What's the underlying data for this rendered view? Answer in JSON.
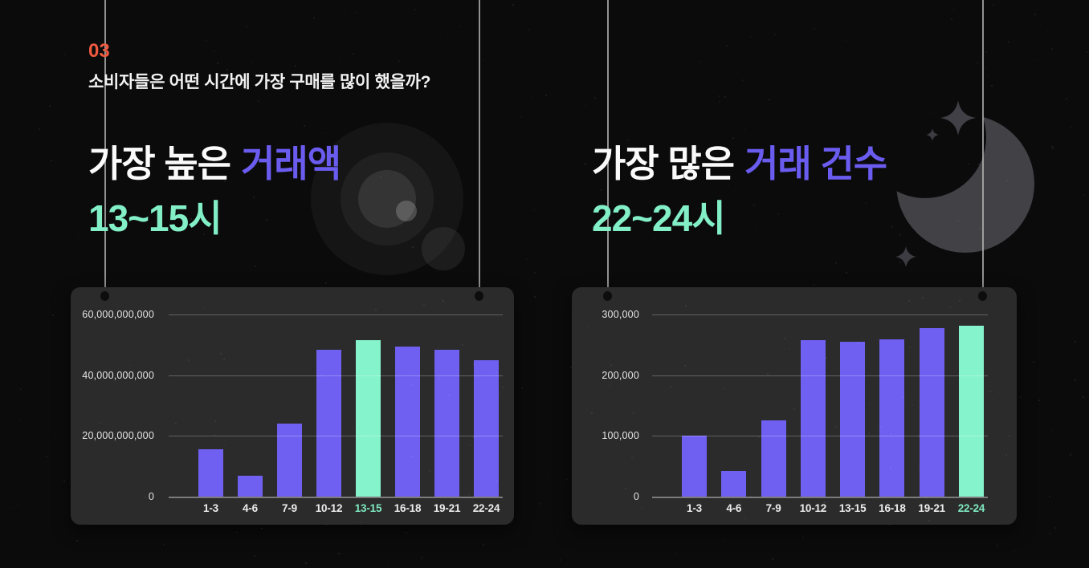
{
  "header": {
    "section_number": "03",
    "question": "소비자들은 어떤 시간에 가장 구매를 많이 했을까?"
  },
  "highlights": {
    "left": {
      "lead": "가장 높은",
      "accent": "거래액",
      "value": "13~15시"
    },
    "right": {
      "lead": "가장 많은",
      "accent": "거래 건수",
      "value": "22~24시"
    }
  },
  "colors": {
    "background": "#0B0B0C",
    "panel": "#2B2B2B",
    "accent_orange": "#F05A3F",
    "accent_purple": "#6B5CF0",
    "accent_mint": "#82EFC7",
    "bar_purple": "#6F60F2",
    "bar_mint": "#85F3CB",
    "gridline": "rgba(255,255,255,0.26)"
  },
  "chart_data": [
    {
      "type": "bar",
      "categories": [
        "1-3",
        "4-6",
        "7-9",
        "10-12",
        "13-15",
        "16-18",
        "19-21",
        "22-24"
      ],
      "values": [
        15500000000,
        7000000000,
        24000000000,
        48500000000,
        51500000000,
        49500000000,
        48500000000,
        45000000000
      ],
      "ylim": [
        0,
        60000000000
      ],
      "yticks": [
        60000000000,
        40000000000,
        20000000000,
        0
      ],
      "highlight_category": "13-15",
      "bar_color": "#6F60F2",
      "highlight_color": "#85F3CB",
      "highlight_label_color": "#7FE9C3",
      "grid": true,
      "legend": "none"
    },
    {
      "type": "bar",
      "categories": [
        "1-3",
        "4-6",
        "7-9",
        "10-12",
        "13-15",
        "16-18",
        "19-21",
        "22-24"
      ],
      "values": [
        101000,
        42000,
        126000,
        258000,
        255000,
        259000,
        278000,
        282000
      ],
      "ylim": [
        0,
        300000
      ],
      "yticks": [
        300000,
        200000,
        100000,
        0
      ],
      "highlight_category": "22-24",
      "bar_color": "#6F60F2",
      "highlight_color": "#85F3CB",
      "highlight_label_color": "#7FE9C3",
      "grid": true,
      "legend": "none"
    }
  ]
}
